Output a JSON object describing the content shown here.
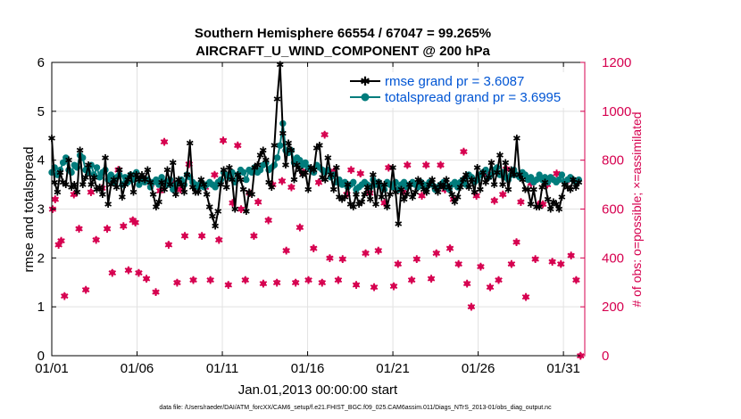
{
  "chart_data": {
    "type": "line",
    "title": "Southern Hemisphere 66554 / 67047 = 99.265%",
    "subtitle": "AIRCRAFT_U_WIND_COMPONENT @ 200 hPa",
    "xlabel": "Jan.01,2013 00:00:00 start",
    "ylabel_left": "rmse and totalspread",
    "ylabel_right": "# of obs: o=possible; ×=assimilated",
    "footnote": "data file: /Users/raeder/DAI/ATM_forcXX/CAM6_setup/f.e21.FHIST_BGC.f09_025.CAM6assim.011/Diags_NTrS_2013-01/obs_diag_output.nc",
    "x_ticks": [
      {
        "day": 0,
        "label": "01/01"
      },
      {
        "day": 5,
        "label": "01/06"
      },
      {
        "day": 10,
        "label": "01/11"
      },
      {
        "day": 15,
        "label": "01/16"
      },
      {
        "day": 20,
        "label": "01/21"
      },
      {
        "day": 25,
        "label": "01/26"
      },
      {
        "day": 30,
        "label": "01/31"
      }
    ],
    "xlim": [
      0,
      31.25
    ],
    "ylim_left": [
      0,
      6
    ],
    "ylim_right": [
      0,
      1200
    ],
    "y_ticks_left": [
      "0",
      "1",
      "2",
      "3",
      "4",
      "5",
      "6"
    ],
    "y_ticks_right": [
      "0",
      "200",
      "400",
      "600",
      "800",
      "1000",
      "1200"
    ],
    "grid": true,
    "legend_position": "top-right",
    "colors": {
      "rmse": "#000000",
      "totalspread": "#007c7c",
      "obs": "#d6004f",
      "legend_text": "#0055d4"
    },
    "series": [
      {
        "name": "rmse grand pr = 3.6087",
        "marker": "star",
        "values": [
          4.45,
          3.55,
          3.35,
          3.75,
          3.55,
          3.5,
          4.0,
          3.45,
          3.5,
          3.35,
          4.2,
          3.5,
          3.65,
          3.9,
          3.5,
          3.65,
          3.4,
          3.45,
          3.3,
          4.05,
          3.1,
          3.5,
          3.6,
          3.45,
          3.8,
          3.25,
          3.5,
          3.6,
          3.7,
          3.35,
          3.7,
          3.6,
          3.7,
          3.6,
          3.8,
          3.55,
          3.3,
          3.05,
          3.15,
          3.55,
          3.4,
          3.8,
          3.5,
          3.95,
          3.3,
          3.6,
          3.5,
          3.35,
          3.7,
          4.35,
          3.45,
          3.35,
          3.35,
          3.6,
          3.5,
          3.3,
          3.05,
          2.85,
          2.65,
          2.95,
          3.5,
          3.8,
          3.45,
          3.85,
          3.6,
          3.0,
          3.7,
          3.6,
          3.4,
          2.95,
          3.35,
          3.3,
          3.85,
          3.9,
          4.1,
          4.2,
          4.0,
          3.55,
          3.45,
          4.3,
          5.25,
          5.95,
          4.55,
          3.9,
          4.35,
          4.2,
          3.6,
          3.9,
          3.8,
          3.7,
          3.75,
          3.4,
          3.85,
          3.8,
          4.25,
          4.3,
          3.65,
          3.6,
          4.05,
          3.7,
          3.4,
          3.85,
          3.25,
          3.2,
          3.25,
          3.5,
          3.1,
          3.05,
          3.3,
          3.1,
          3.15,
          3.3,
          3.45,
          3.2,
          3.7,
          3.1,
          3.55,
          3.25,
          3.5,
          3.05,
          3.3,
          3.85,
          3.35,
          2.7,
          3.4,
          3.2,
          3.3,
          3.5,
          3.25,
          3.35,
          3.6,
          3.55,
          3.4,
          3.35,
          3.5,
          3.6,
          3.45,
          3.35,
          3.5,
          3.45,
          3.6,
          3.45,
          3.3,
          3.15,
          3.25,
          3.45,
          3.6,
          3.7,
          3.45,
          3.6,
          3.35,
          3.85,
          3.4,
          3.75,
          3.55,
          3.65,
          3.95,
          3.5,
          3.75,
          4.1,
          3.5,
          3.95,
          3.4,
          3.8,
          3.7,
          4.45,
          3.7,
          3.6,
          3.4,
          3.4,
          3.1,
          3.4,
          3.05,
          3.05,
          3.45,
          3.55,
          3.2,
          3.0,
          3.15,
          3.1,
          3.0,
          3.25,
          3.5,
          3.45,
          3.4,
          3.6,
          3.45,
          3.55
        ]
      },
      {
        "name": "totalspread grand pr = 3.6995",
        "marker": "circle",
        "values": [
          3.75,
          3.85,
          3.7,
          3.8,
          3.95,
          4.05,
          3.8,
          3.75,
          3.9,
          3.85,
          4.1,
          4.05,
          3.8,
          3.75,
          3.9,
          3.7,
          3.85,
          3.65,
          3.75,
          3.8,
          3.6,
          3.7,
          3.55,
          3.65,
          3.7,
          3.5,
          3.65,
          3.55,
          3.7,
          3.6,
          3.75,
          3.5,
          3.65,
          3.55,
          3.6,
          3.45,
          3.55,
          3.6,
          3.5,
          3.65,
          3.55,
          3.5,
          3.6,
          3.4,
          3.5,
          3.55,
          3.6,
          3.5,
          3.7,
          3.65,
          3.55,
          3.5,
          3.45,
          3.55,
          3.45,
          3.5,
          3.55,
          3.5,
          3.45,
          3.55,
          3.6,
          3.75,
          3.7,
          3.65,
          3.75,
          3.55,
          3.7,
          3.8,
          3.75,
          3.6,
          3.8,
          3.75,
          3.85,
          3.75,
          3.8,
          3.9,
          3.95,
          3.8,
          3.85,
          3.9,
          4.05,
          4.3,
          4.75,
          4.2,
          4.15,
          4.2,
          3.95,
          4.05,
          4.0,
          3.9,
          3.95,
          3.85,
          3.8,
          3.75,
          3.9,
          3.85,
          3.8,
          3.75,
          3.8,
          3.65,
          3.7,
          3.55,
          3.6,
          3.5,
          3.55,
          3.45,
          3.5,
          3.55,
          3.4,
          3.45,
          3.5,
          3.55,
          3.5,
          3.45,
          3.6,
          3.5,
          3.55,
          3.45,
          3.4,
          3.55,
          3.5,
          3.45,
          3.55,
          3.4,
          3.5,
          3.55,
          3.45,
          3.5,
          3.55,
          3.5,
          3.45,
          3.55,
          3.5,
          3.45,
          3.55,
          3.5,
          3.4,
          3.45,
          3.5,
          3.55,
          3.45,
          3.4,
          3.5,
          3.55,
          3.45,
          3.55,
          3.6,
          3.5,
          3.7,
          3.65,
          3.55,
          3.6,
          3.7,
          3.75,
          3.8,
          3.65,
          3.7,
          3.8,
          3.85,
          3.7,
          3.75,
          3.65,
          3.6,
          3.7,
          3.8,
          3.7,
          3.65,
          3.75,
          3.7,
          3.6,
          3.65,
          3.55,
          3.6,
          3.7,
          3.6,
          3.65,
          3.55,
          3.65,
          3.6,
          3.55,
          3.6,
          3.7,
          3.55,
          3.6,
          3.65,
          3.6,
          3.55,
          3.6
        ]
      }
    ],
    "obs_points": [
      [
        0.05,
        600
      ],
      [
        0.2,
        640
      ],
      [
        0.4,
        455
      ],
      [
        0.55,
        470
      ],
      [
        0.75,
        245
      ],
      [
        1.3,
        660
      ],
      [
        1.6,
        520
      ],
      [
        2.0,
        270
      ],
      [
        2.3,
        670
      ],
      [
        2.6,
        475
      ],
      [
        2.95,
        685
      ],
      [
        3.25,
        520
      ],
      [
        3.55,
        340
      ],
      [
        3.9,
        760
      ],
      [
        4.2,
        530
      ],
      [
        4.5,
        350
      ],
      [
        4.75,
        555
      ],
      [
        4.9,
        545
      ],
      [
        5.1,
        340
      ],
      [
        5.3,
        730
      ],
      [
        5.55,
        315
      ],
      [
        5.8,
        700
      ],
      [
        6.1,
        260
      ],
      [
        6.35,
        675
      ],
      [
        6.6,
        875
      ],
      [
        6.85,
        455
      ],
      [
        7.1,
        705
      ],
      [
        7.35,
        300
      ],
      [
        7.55,
        680
      ],
      [
        7.8,
        490
      ],
      [
        8.05,
        785
      ],
      [
        8.3,
        310
      ],
      [
        8.55,
        690
      ],
      [
        8.8,
        490
      ],
      [
        9.0,
        690
      ],
      [
        9.3,
        310
      ],
      [
        9.55,
        740
      ],
      [
        9.8,
        475
      ],
      [
        10.05,
        880
      ],
      [
        10.35,
        290
      ],
      [
        10.6,
        625
      ],
      [
        10.9,
        860
      ],
      [
        11.1,
        600
      ],
      [
        11.35,
        310
      ],
      [
        11.6,
        665
      ],
      [
        11.85,
        490
      ],
      [
        12.1,
        630
      ],
      [
        12.4,
        295
      ],
      [
        12.7,
        555
      ],
      [
        12.95,
        700
      ],
      [
        13.2,
        300
      ],
      [
        13.5,
        715
      ],
      [
        13.75,
        430
      ],
      [
        14.05,
        690
      ],
      [
        14.3,
        300
      ],
      [
        14.55,
        525
      ],
      [
        14.75,
        750
      ],
      [
        15.05,
        310
      ],
      [
        15.35,
        440
      ],
      [
        15.65,
        710
      ],
      [
        15.85,
        300
      ],
      [
        16.0,
        905
      ],
      [
        16.3,
        400
      ],
      [
        16.55,
        755
      ],
      [
        16.8,
        310
      ],
      [
        17.05,
        395
      ],
      [
        17.3,
        660
      ],
      [
        17.55,
        760
      ],
      [
        17.85,
        290
      ],
      [
        18.1,
        745
      ],
      [
        18.4,
        420
      ],
      [
        18.65,
        665
      ],
      [
        18.9,
        280
      ],
      [
        19.15,
        430
      ],
      [
        19.5,
        625
      ],
      [
        19.75,
        770
      ],
      [
        20.05,
        285
      ],
      [
        20.3,
        375
      ],
      [
        20.6,
        670
      ],
      [
        20.85,
        780
      ],
      [
        21.1,
        310
      ],
      [
        21.4,
        395
      ],
      [
        21.7,
        655
      ],
      [
        21.95,
        780
      ],
      [
        22.25,
        315
      ],
      [
        22.55,
        420
      ],
      [
        22.8,
        780
      ],
      [
        23.05,
        680
      ],
      [
        23.35,
        440
      ],
      [
        23.55,
        640
      ],
      [
        23.85,
        375
      ],
      [
        24.15,
        835
      ],
      [
        24.35,
        295
      ],
      [
        24.6,
        200
      ],
      [
        24.9,
        655
      ],
      [
        25.15,
        365
      ],
      [
        25.45,
        745
      ],
      [
        25.7,
        280
      ],
      [
        25.95,
        635
      ],
      [
        26.2,
        310
      ],
      [
        26.45,
        660
      ],
      [
        26.65,
        765
      ],
      [
        26.95,
        375
      ],
      [
        27.25,
        465
      ],
      [
        27.5,
        630
      ],
      [
        27.8,
        240
      ],
      [
        28.1,
        705
      ],
      [
        28.35,
        395
      ],
      [
        28.55,
        620
      ],
      [
        28.8,
        620
      ],
      [
        29.05,
        700
      ],
      [
        29.35,
        385
      ],
      [
        29.6,
        745
      ],
      [
        29.85,
        375
      ],
      [
        30.15,
        715
      ],
      [
        30.45,
        410
      ],
      [
        30.75,
        310
      ],
      [
        31.0,
        0
      ]
    ]
  }
}
